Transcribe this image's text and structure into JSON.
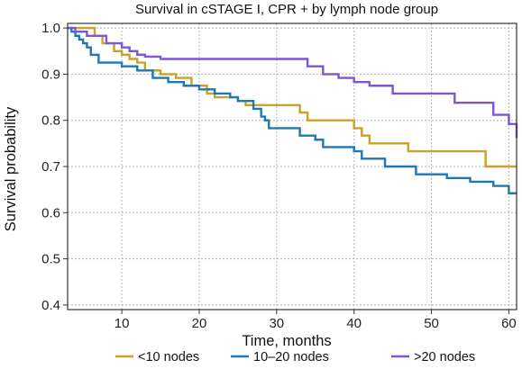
{
  "chart_data": {
    "type": "line",
    "step": true,
    "title": "Survival in cSTAGE I, CPR + by lymph node group",
    "xlabel": "Time, months",
    "ylabel": "Survival probability",
    "xlim": [
      3,
      61
    ],
    "ylim": [
      0.39,
      1.01
    ],
    "xticks": [
      10,
      20,
      30,
      40,
      50,
      60
    ],
    "yticks": [
      0.4,
      0.5,
      0.6,
      0.7,
      0.8,
      0.9,
      1.0
    ],
    "ytick_labels": [
      "0.4",
      "0.5",
      "0.6",
      "0.7",
      "0.8",
      "0.9",
      "1.0"
    ],
    "grid": true,
    "legend_position": "bottom",
    "series": [
      {
        "name": "<10 nodes",
        "color": "#C9A227",
        "x": [
          3,
          6.5,
          7.5,
          9,
          10,
          11,
          12,
          13,
          15,
          17,
          19,
          21,
          22,
          25,
          26,
          27,
          33,
          34,
          40,
          41,
          42,
          44,
          47,
          50,
          57,
          61
        ],
        "y": [
          1.0,
          0.983,
          0.967,
          0.95,
          0.942,
          0.933,
          0.925,
          0.908,
          0.9,
          0.892,
          0.875,
          0.858,
          0.85,
          0.842,
          0.833,
          0.833,
          0.817,
          0.8,
          0.783,
          0.767,
          0.75,
          0.75,
          0.733,
          0.733,
          0.7,
          0.7
        ]
      },
      {
        "name": "10–20 nodes",
        "color": "#1F77B4",
        "x": [
          3,
          3.5,
          4,
          4.5,
          5,
          5.5,
          6,
          7,
          10,
          12,
          14,
          16,
          18,
          20,
          22,
          24,
          25,
          27,
          28,
          28.5,
          29,
          30,
          33,
          35,
          36,
          38,
          40,
          41,
          43,
          44,
          46,
          48,
          50,
          52,
          55,
          57,
          58,
          60,
          61
        ],
        "y": [
          1.0,
          0.992,
          0.983,
          0.975,
          0.967,
          0.958,
          0.942,
          0.925,
          0.917,
          0.908,
          0.892,
          0.883,
          0.875,
          0.867,
          0.858,
          0.85,
          0.842,
          0.825,
          0.808,
          0.8,
          0.783,
          0.783,
          0.767,
          0.758,
          0.742,
          0.742,
          0.733,
          0.717,
          0.717,
          0.7,
          0.7,
          0.683,
          0.683,
          0.675,
          0.667,
          0.667,
          0.658,
          0.642,
          0.642
        ]
      },
      {
        "name": ">20 nodes",
        "color": "#7F55D1",
        "x": [
          3,
          4,
          5.5,
          8,
          10,
          11,
          12,
          13,
          15,
          30,
          34,
          36,
          38,
          40,
          42,
          43,
          45,
          50,
          53,
          56,
          58,
          60,
          61
        ],
        "y": [
          1.0,
          0.992,
          0.983,
          0.967,
          0.958,
          0.95,
          0.942,
          0.938,
          0.933,
          0.933,
          0.917,
          0.9,
          0.892,
          0.883,
          0.875,
          0.875,
          0.858,
          0.858,
          0.838,
          0.838,
          0.812,
          0.792,
          0.762
        ]
      }
    ]
  }
}
